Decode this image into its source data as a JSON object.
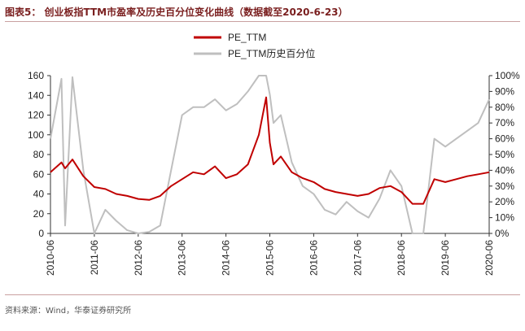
{
  "figure_title": "图表5：  创业板指TTM市盈率及历史百分位变化曲线（数据截至2020-6-23）",
  "source_note": "资料来源：Wind，华泰证券研究所",
  "chart_data": {
    "type": "line",
    "x": [
      "2010-06",
      "2010-09",
      "2010-10",
      "2010-12",
      "2011-03",
      "2011-06",
      "2011-09",
      "2011-12",
      "2012-03",
      "2012-06",
      "2012-09",
      "2012-12",
      "2013-03",
      "2013-06",
      "2013-09",
      "2013-12",
      "2014-03",
      "2014-06",
      "2014-09",
      "2014-12",
      "2015-03",
      "2015-05",
      "2015-06",
      "2015-07",
      "2015-09",
      "2015-12",
      "2016-03",
      "2016-06",
      "2016-09",
      "2016-12",
      "2017-03",
      "2017-06",
      "2017-09",
      "2017-12",
      "2018-03",
      "2018-06",
      "2018-09",
      "2018-12",
      "2019-03",
      "2019-06",
      "2019-09",
      "2019-12",
      "2020-03",
      "2020-06"
    ],
    "x_ticks": [
      "2010-06",
      "2011-06",
      "2012-06",
      "2013-06",
      "2014-06",
      "2015-06",
      "2016-06",
      "2017-06",
      "2018-06",
      "2019-06",
      "2020-06"
    ],
    "series": [
      {
        "name": "PE_TTM",
        "axis": "left",
        "color": "#c00000",
        "values": [
          62,
          72,
          66,
          75,
          58,
          47,
          45,
          40,
          38,
          35,
          34,
          38,
          48,
          55,
          62,
          60,
          68,
          56,
          60,
          70,
          100,
          138,
          92,
          70,
          78,
          62,
          56,
          52,
          45,
          42,
          40,
          38,
          40,
          46,
          48,
          42,
          30,
          30,
          55,
          52,
          55,
          58,
          60,
          62
        ]
      },
      {
        "name": "PE_TTM历史百分位",
        "axis": "right",
        "color": "#bfbfbf",
        "values": [
          60,
          98,
          5,
          99,
          40,
          0,
          15,
          8,
          2,
          0,
          1,
          5,
          40,
          75,
          80,
          80,
          85,
          78,
          82,
          90,
          100,
          100,
          88,
          70,
          75,
          45,
          30,
          25,
          15,
          12,
          20,
          14,
          10,
          22,
          40,
          30,
          0,
          0,
          60,
          55,
          60,
          65,
          70,
          85
        ]
      }
    ],
    "yleft_ticks": [
      0,
      20,
      40,
      60,
      80,
      100,
      120,
      140,
      160
    ],
    "yleft_lim": [
      0,
      160
    ],
    "yright_ticks": [
      "0%",
      "10%",
      "20%",
      "30%",
      "40%",
      "50%",
      "60%",
      "70%",
      "80%",
      "90%",
      "100%"
    ],
    "yright_lim": [
      0,
      100
    ],
    "legend_position": "top-center",
    "grid": false
  }
}
